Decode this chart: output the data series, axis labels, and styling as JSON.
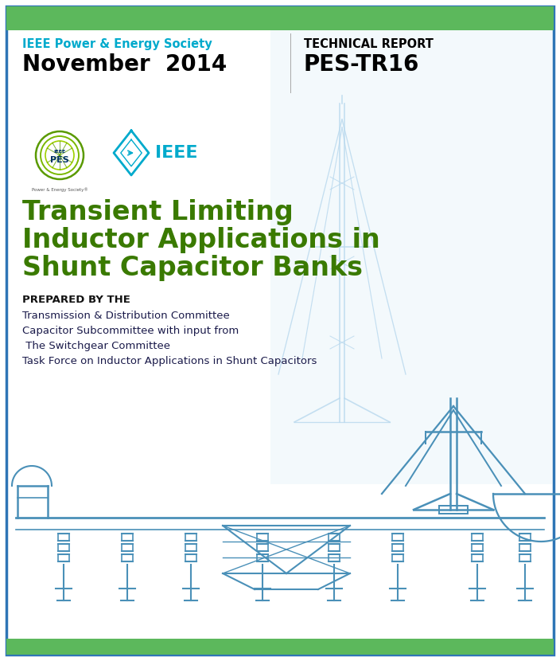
{
  "bg_color": "#ffffff",
  "border_color": "#2e75b6",
  "green_bar_color": "#5cb85c",
  "header_left_label": "IEEE Power & Energy Society",
  "header_left_color": "#00aacc",
  "header_date": "November  2014",
  "header_date_color": "#000000",
  "header_right_label": "TECHNICAL REPORT",
  "header_right_color": "#000000",
  "header_right_code": "PES-TR16",
  "header_right_code_color": "#000000",
  "main_title_line1": "Transient Limiting",
  "main_title_line2": "Inductor Applications in",
  "main_title_line3": "Shunt Capacitor Banks",
  "main_title_color": "#3a7a00",
  "prepared_label": "PREPARED BY THE",
  "prepared_lines": [
    "Transmission & Distribution Committee",
    "Capacitor Subcommittee with input from",
    " The Switchgear Committee",
    "Task Force on Inductor Applications in Shunt Capacitors"
  ],
  "prepared_color": "#1a1a4a",
  "substation_color": "#4a90b8",
  "substation_light_color": "#b8d8ee",
  "substation_bg": "#dff0f8"
}
